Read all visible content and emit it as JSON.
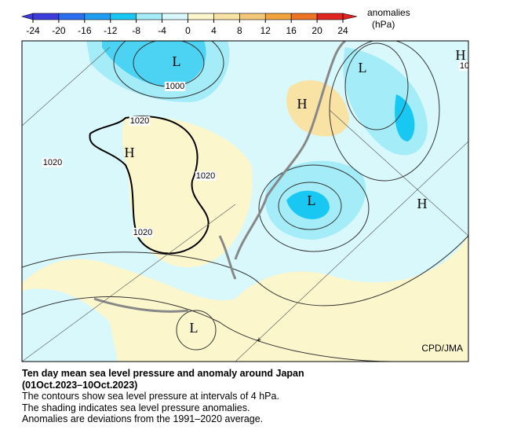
{
  "colorbar": {
    "ticks": [
      -24,
      -20,
      -16,
      -12,
      -8,
      -4,
      0,
      4,
      8,
      12,
      16,
      20,
      24
    ],
    "colors": [
      "#3c3cdc",
      "#2a6ef2",
      "#1e9ef2",
      "#18c8f2",
      "#a4ecf8",
      "#d8f8fc",
      "#fcf6cc",
      "#f8e2a4",
      "#f2c878",
      "#f0a43a",
      "#ee7424",
      "#e02420"
    ],
    "label": "anomalies",
    "unit": "(hPa)"
  },
  "map": {
    "labels": [
      "L",
      "1000",
      "L",
      "H",
      "10",
      "H",
      "1020",
      "1020",
      "H",
      "1020",
      "L",
      "H",
      "1020",
      "L",
      "+"
    ],
    "credit": "CPD/JMA"
  },
  "caption": {
    "title": "Ten day mean sea level pressure and anomaly around Japan",
    "period": "(01Oct.2023–10Oct.2023)",
    "lines": [
      "The contours show sea level pressure at intervals of 4 hPa.",
      "The shading indicates sea level pressure anomalies.",
      "Anomalies are deviations from the 1991–2020 average."
    ]
  }
}
